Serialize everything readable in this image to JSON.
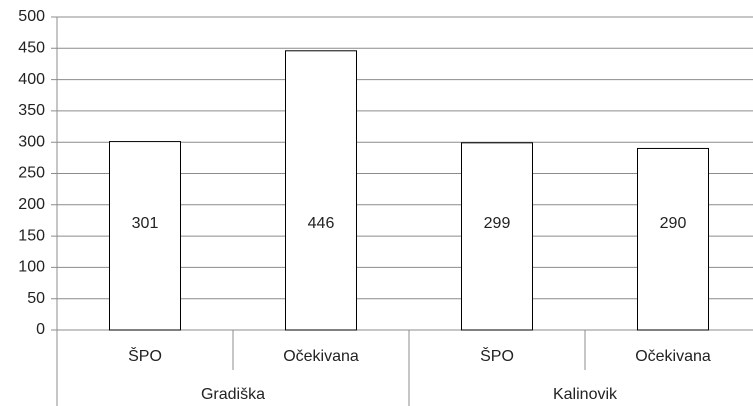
{
  "chart_data": {
    "type": "bar",
    "categories": [
      "ŠPO",
      "Očekivana",
      "ŠPO",
      "Očekivana"
    ],
    "groups": [
      "Gradiška",
      "Kalinovik"
    ],
    "values": [
      301,
      446,
      299,
      290
    ],
    "color": "#ffffff",
    "ylim": [
      0,
      500
    ],
    "yticks": [
      0,
      50,
      100,
      150,
      200,
      250,
      300,
      350,
      400,
      450,
      500
    ],
    "grid": true
  }
}
